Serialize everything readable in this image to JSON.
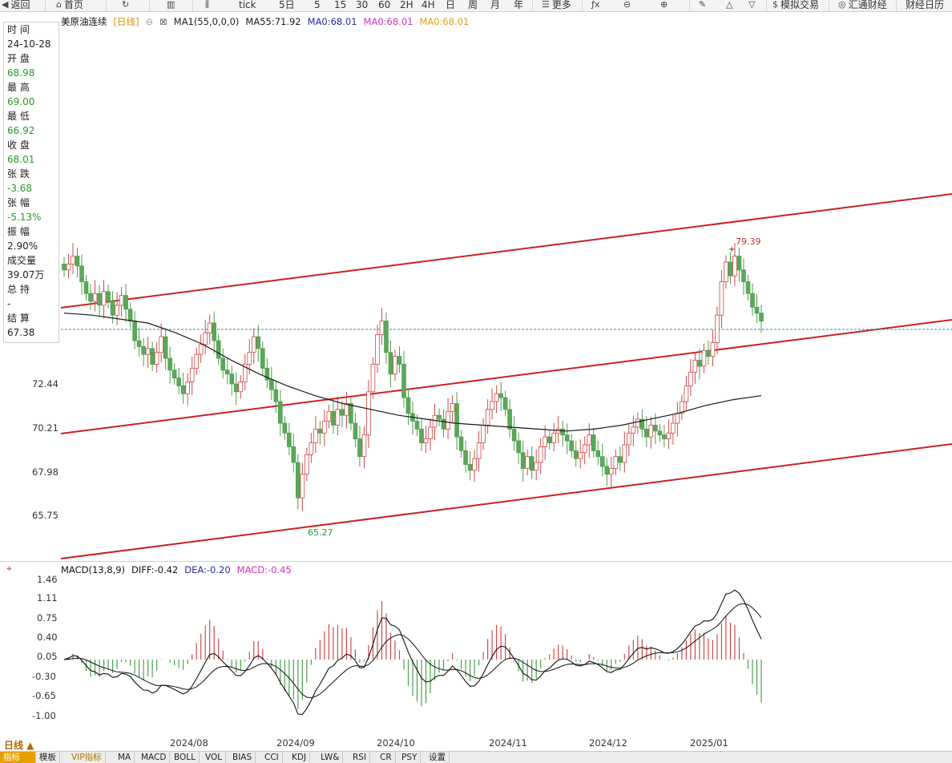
{
  "toolbar": {
    "back": "返回",
    "home": "首页",
    "tick": "tick",
    "periods": [
      "5日",
      "5",
      "15",
      "30",
      "60",
      "2H",
      "4H",
      "日",
      "周",
      "月",
      "年"
    ],
    "more": "更多",
    "simulate": "模拟交易",
    "huitong": "汇通财经",
    "calendar": "财经日历"
  },
  "chart_header": {
    "symbol": "美原油连续",
    "period_tag": "[日线]",
    "ma1": "MA1(55,0,0,0)",
    "ma55": "MA55:71.92",
    "ma0_a": "MA0:68.01",
    "ma0_b": "MA0:68.01",
    "ma0_c": "MA0:68.01",
    "colors": {
      "ma55": "#1a1a1a",
      "ma0_a": "#2a2aa0",
      "ma0_b": "#d030c0",
      "ma0_c": "#e0a020"
    }
  },
  "info": {
    "time_label": "时 间",
    "time_value": "24-10-28",
    "open_label": "开 盘",
    "open_value": "68.98",
    "high_label": "最 高",
    "high_value": "69.00",
    "low_label": "最 低",
    "low_value": "66.92",
    "close_label": "收 盘",
    "close_value": "68.01",
    "change_label": "张 跌",
    "change_value": "-3.68",
    "pct_label": "张 幅",
    "pct_value": "-5.13%",
    "amp_label": "振 幅",
    "amp_value": "2.90%",
    "vol_label": "成交量",
    "vol_value": "39.07万",
    "oi_label": "总 持",
    "oi_value": "-",
    "settle_label": "结 算",
    "settle_value": "67.38"
  },
  "price_axis": [
    "72.44",
    "70.21",
    "67.98",
    "65.75"
  ],
  "annotations": {
    "high": "79.39",
    "low": "65.27"
  },
  "macd": {
    "title": "MACD(13,8,9)",
    "diff": "DIFF:-0.42",
    "dea": "DEA:-0.20",
    "macd": "MACD:-0.45",
    "axis": [
      "1.46",
      "1.11",
      "0.75",
      "0.40",
      "0.05",
      "-0.30",
      "-0.65",
      "-1.00"
    ]
  },
  "time_axis": [
    "2024/08",
    "2024/09",
    "2024/10",
    "2024/11",
    "2024/12",
    "2025/01"
  ],
  "period_button": "日线 ▲",
  "bottom_tabs": [
    "指标",
    "模板",
    "VIP指标",
    "MA",
    "MACD",
    "BOLL",
    "VOL",
    "BIAS",
    "CCI",
    "KDJ",
    "LW&",
    "RSI",
    "CR",
    "PSY",
    "设置"
  ],
  "chart_data": {
    "type": "candlestick",
    "title": "美原油连续 [日线]",
    "y_ticks": [
      72.44,
      70.21,
      67.98,
      65.75
    ],
    "closes": [
      78.2,
      78.5,
      78.9,
      78.4,
      77.6,
      77.0,
      76.6,
      77.0,
      76.4,
      77.1,
      76.6,
      75.9,
      76.4,
      76.9,
      76.2,
      75.6,
      74.6,
      74.3,
      73.9,
      74.2,
      73.4,
      74.0,
      74.8,
      73.7,
      73.1,
      72.7,
      72.3,
      71.9,
      72.5,
      73.2,
      73.9,
      74.4,
      75.0,
      75.5,
      74.6,
      73.7,
      73.1,
      72.9,
      72.4,
      72.0,
      72.5,
      73.4,
      74.0,
      74.8,
      74.2,
      73.2,
      72.6,
      72.1,
      71.5,
      70.4,
      69.9,
      69.2,
      68.4,
      66.6,
      67.8,
      68.8,
      69.4,
      70.1,
      69.9,
      70.5,
      71.0,
      70.3,
      71.1,
      70.8,
      71.4,
      70.4,
      69.6,
      68.7,
      69.8,
      72.0,
      73.4,
      74.9,
      75.6,
      74.0,
      72.9,
      73.8,
      73.4,
      71.7,
      70.9,
      70.5,
      70.1,
      69.4,
      69.6,
      70.2,
      70.8,
      70.6,
      70.1,
      71.0,
      71.4,
      69.7,
      69.0,
      68.3,
      68.0,
      68.6,
      69.4,
      70.3,
      71.1,
      71.5,
      71.9,
      71.7,
      71.1,
      70.1,
      69.5,
      68.9,
      68.1,
      68.7,
      68.0,
      68.4,
      69.2,
      69.7,
      69.4,
      69.9,
      70.1,
      69.8,
      69.5,
      69.0,
      68.6,
      68.9,
      69.3,
      69.8,
      69.0,
      68.7,
      68.2,
      67.8,
      68.1,
      68.7,
      68.4,
      69.3,
      69.9,
      70.2,
      70.6,
      70.1,
      69.7,
      70.3,
      70.0,
      69.8,
      69.6,
      69.9,
      70.4,
      70.9,
      71.5,
      72.3,
      73.0,
      73.6,
      73.3,
      74.1,
      73.8,
      74.5,
      75.9,
      77.6,
      78.6,
      77.9,
      78.9,
      78.2,
      77.6,
      77.0,
      76.3,
      76.0,
      75.6
    ],
    "ma55": [
      76.0,
      75.9,
      75.7,
      75.5,
      75.0,
      74.4,
      73.6,
      72.9,
      72.3,
      71.8,
      71.4,
      71.1,
      70.8,
      70.6,
      70.4,
      70.3,
      70.2,
      70.1,
      70.0,
      70.1,
      70.3,
      70.6,
      70.9,
      71.3,
      71.6,
      71.8
    ]
  }
}
